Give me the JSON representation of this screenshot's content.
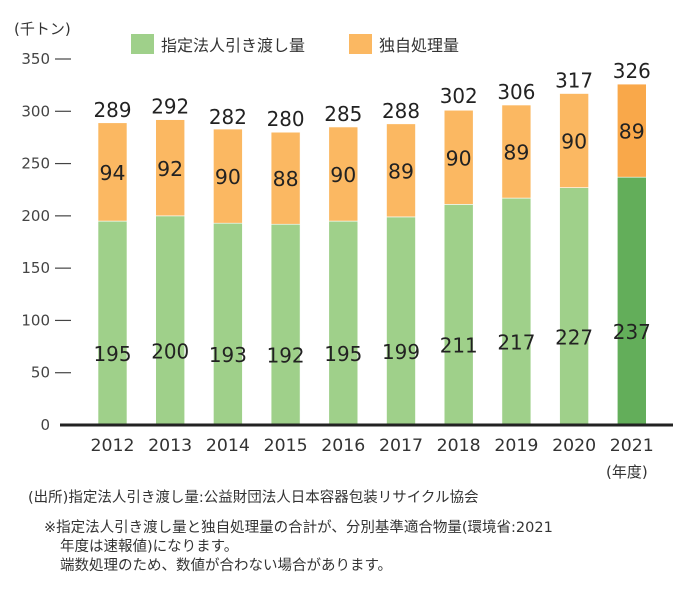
{
  "chart_data": {
    "type": "bar",
    "stacked": true,
    "title": "",
    "unit_label": "(千トン)",
    "xlabel": "",
    "xlabel_suffix": "(年度)",
    "ylabel": "",
    "ylim": [
      0,
      350
    ],
    "yticks": [
      0,
      50,
      100,
      150,
      200,
      250,
      300,
      350
    ],
    "grid": false,
    "legend_position": "top",
    "categories": [
      "2012",
      "2013",
      "2014",
      "2015",
      "2016",
      "2017",
      "2018",
      "2019",
      "2020",
      "2021"
    ],
    "series": [
      {
        "name": "指定法人引き渡し量",
        "color": "#9fd08a",
        "highlight_color": "#63ae5a",
        "values": [
          195,
          200,
          193,
          192,
          195,
          199,
          211,
          217,
          227,
          237
        ]
      },
      {
        "name": "独自処理量",
        "color": "#fbb862",
        "highlight_color": "#f9a84a",
        "values": [
          94,
          92,
          90,
          88,
          90,
          89,
          90,
          89,
          90,
          89
        ]
      }
    ],
    "totals": [
      289,
      292,
      282,
      280,
      285,
      288,
      302,
      306,
      317,
      326
    ],
    "highlighted_category": "2021"
  },
  "notes": {
    "source": "(出所)指定法人引き渡し量:公益財団法人日本容器包装リサイクル協会",
    "note_line1": "※指定法人引き渡し量と独自処理量の合計が、分別基準適合物量(環境省:2021",
    "note_line2": "年度は速報値)になります。",
    "note_line3": "端数処理のため、数値が合わない場合があります。"
  }
}
